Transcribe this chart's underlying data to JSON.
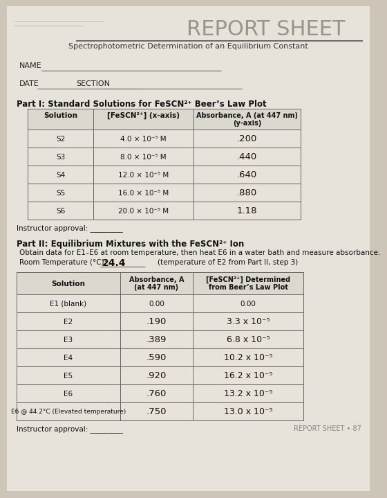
{
  "title": "REPORT SHEET",
  "subtitle": "Spectrophotometric Determination of an Equilibrium Constant",
  "bg_color": "#ccc5b8",
  "paper_color": "#e8e3da",
  "name_label": "NAME",
  "date_label": "DATE",
  "section_label": "SECTION",
  "part1_title": "Part I: Standard Solutions for FeSCN²⁺ Beer’s Law Plot",
  "part1_headers": [
    "Solution",
    "[FeSCN²⁺] (x-axis)",
    "Absorbance, A (at 447 nm)\n(y-axis)"
  ],
  "part1_rows": [
    [
      "S2",
      "4.0 × 10⁻⁵ M",
      ".200"
    ],
    [
      "S3",
      "8.0 × 10⁻⁵ M",
      ".440"
    ],
    [
      "S4",
      "12.0 × 10⁻⁵ M",
      ".640"
    ],
    [
      "S5",
      "16.0 × 10⁻⁵ M",
      ".880"
    ],
    [
      "S6",
      "20.0 × 10⁻⁵ M",
      "1.18"
    ]
  ],
  "instructor_approval1": "Instructor approval: _________",
  "part2_title": "Part II: Equilibrium Mixtures with the FeSCN²⁺ Ion",
  "part2_desc1": "Obtain data for E1–E6 at room temperature, then heat E6 in a water bath and measure absorbance.",
  "room_temp_label": "Room Temperature (°C): ",
  "room_temp_value": "24.4",
  "room_temp_suffix": "    (temperature of E2 from Part II, step 3)",
  "part2_headers": [
    "Solution",
    "Absorbance, A\n(at 447 nm)",
    "[FeSCN²⁺] Determined\nfrom Beer’s Law Plot"
  ],
  "part2_rows": [
    [
      "E1 (blank)",
      "0.00",
      "0.00"
    ],
    [
      "E2",
      ".190",
      "3.3 x 10⁻⁵"
    ],
    [
      "E3",
      ".389",
      "6.8 x 10⁻⁵"
    ],
    [
      "E4",
      ".590",
      "10.2 x 10⁻⁵"
    ],
    [
      "E5",
      ".920",
      "16.2 x 10⁻⁵"
    ],
    [
      "E6",
      ".760",
      "13.2 x 10⁻⁵"
    ],
    [
      "E6 @ 44.2°C (Elevated temperature)",
      ".750",
      "13.0 x 10⁻⁵"
    ]
  ],
  "instructor_approval2": "Instructor approval: _________",
  "footer": "REPORT SHEET • 87",
  "handwritten_color": "#1a0f00",
  "text_color": "#111111",
  "line_color": "#666666",
  "header_bg": "#d0cac0"
}
